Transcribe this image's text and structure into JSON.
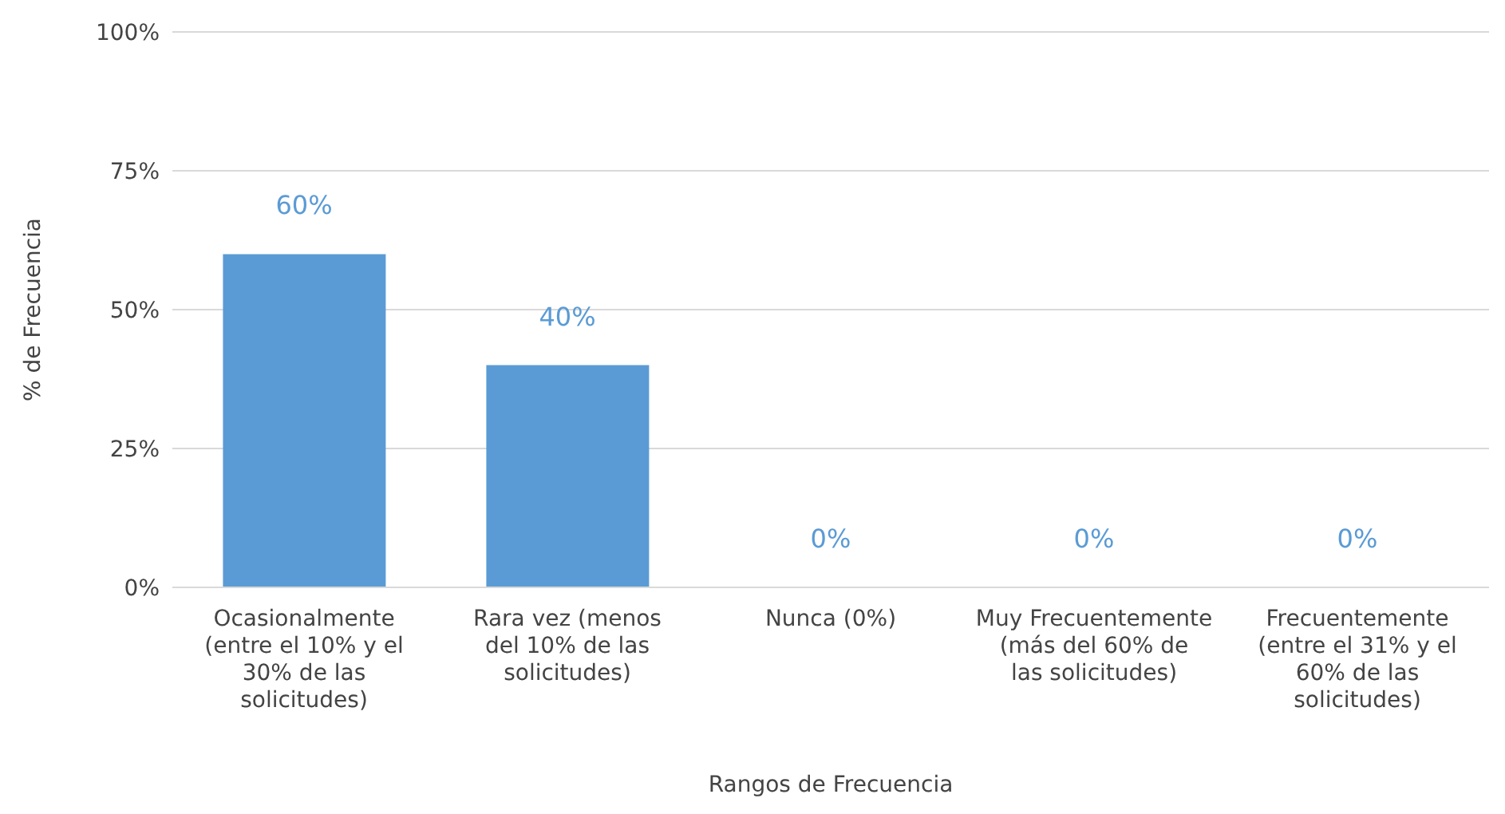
{
  "chart_data": {
    "type": "bar",
    "xlabel": "Rangos de Frecuencia",
    "ylabel": "% de Frecuencia",
    "categories": [
      "Ocasionalmente (entre el 10% y el 30% de las solicitudes)",
      "Rara vez (menos del 10% de las solicitudes)",
      "Nunca (0%)",
      "Muy Frecuentemente (más del 60% de las solicitudes)",
      "Frecuentemente (entre el 31% y el 60% de las solicitudes)"
    ],
    "values": [
      60,
      40,
      0,
      0,
      0
    ],
    "color": "#5b9bd5",
    "value_labels": [
      "60%",
      "40%",
      "0%",
      "0%",
      "0%"
    ],
    "ylim": [
      0,
      100
    ],
    "yticks": [
      {
        "value": 0,
        "label": "0%"
      },
      {
        "value": 25,
        "label": "25%"
      },
      {
        "value": 50,
        "label": "50%"
      },
      {
        "value": 75,
        "label": "75%"
      },
      {
        "value": 100,
        "label": "100%"
      }
    ],
    "grid": "y",
    "legend": false
  }
}
